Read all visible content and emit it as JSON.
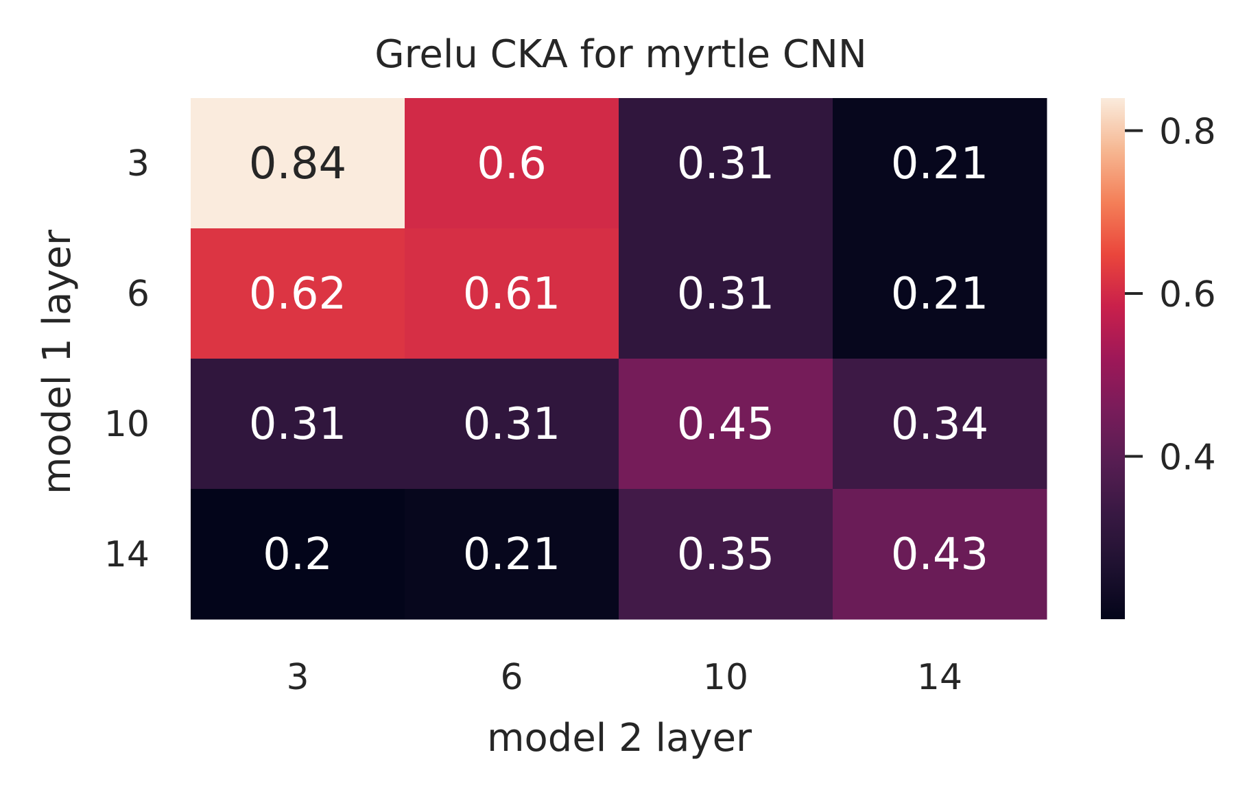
{
  "chart_data": {
    "type": "heatmap",
    "title": "Grelu CKA for myrtle CNN",
    "xlabel": "model 2 layer",
    "ylabel": "model 1 layer",
    "x_categories": [
      "3",
      "6",
      "10",
      "14"
    ],
    "y_categories": [
      "3",
      "6",
      "10",
      "14"
    ],
    "values": [
      [
        0.84,
        0.6,
        0.31,
        0.21
      ],
      [
        0.62,
        0.61,
        0.31,
        0.21
      ],
      [
        0.31,
        0.31,
        0.45,
        0.34
      ],
      [
        0.2,
        0.21,
        0.35,
        0.43
      ]
    ],
    "annotations": [
      [
        "0.84",
        "0.6",
        "0.31",
        "0.21"
      ],
      [
        "0.62",
        "0.61",
        "0.31",
        "0.21"
      ],
      [
        "0.31",
        "0.31",
        "0.45",
        "0.34"
      ],
      [
        "0.2",
        "0.21",
        "0.35",
        "0.43"
      ]
    ],
    "colorbar": {
      "colormap": "rocket",
      "vmin": 0.2,
      "vmax": 0.84,
      "ticks": [
        0.4,
        0.6,
        0.8
      ],
      "tick_labels": [
        "0.4",
        "0.6",
        "0.8"
      ]
    },
    "grid": false,
    "legend": "colorbar-right"
  },
  "colors": {
    "text": "#262626",
    "annotation_light": "#ffffff",
    "annotation_dark": "#262626"
  }
}
